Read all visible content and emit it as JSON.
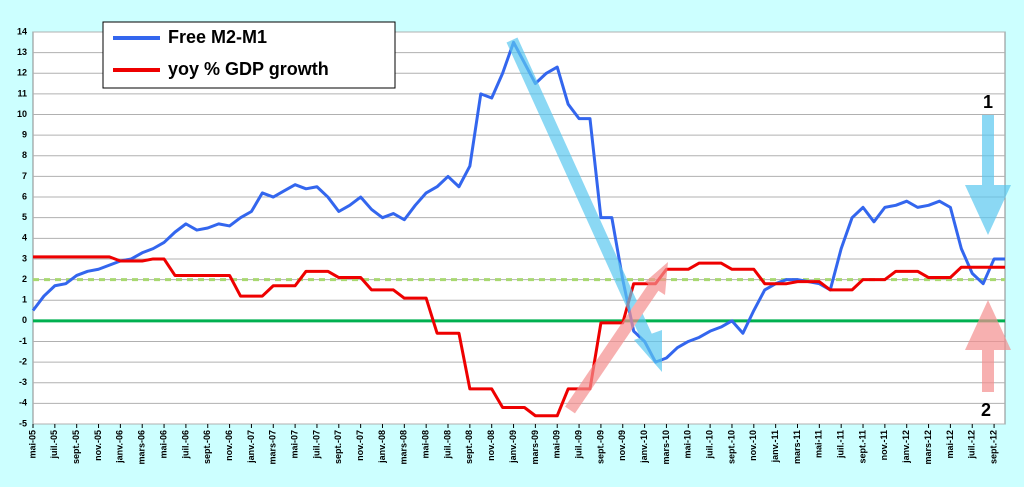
{
  "chart_data": {
    "type": "line",
    "categories": [
      "mai-05",
      null,
      "juil.-05",
      null,
      "sept.-05",
      null,
      "nov.-05",
      null,
      "janv.-06",
      null,
      "mars-06",
      null,
      "mai-06",
      null,
      "juil.-06",
      null,
      "sept.-06",
      null,
      "nov.-06",
      null,
      "janv.-07",
      null,
      "mars-07",
      null,
      "mai-07",
      null,
      "juil.-07",
      null,
      "sept.-07",
      null,
      "nov.-07",
      null,
      "janv.-08",
      null,
      "mars-08",
      null,
      "mai-08",
      null,
      "juil.-08",
      null,
      "sept.-08",
      null,
      "nov.-08",
      null,
      "janv.-09",
      null,
      "mars-09",
      null,
      "mai-09",
      null,
      "juil.-09",
      null,
      "sept.-09",
      null,
      "nov.-09",
      null,
      "janv.-10",
      null,
      "mars-10",
      null,
      "mai-10",
      null,
      "juil.-10",
      null,
      "sept.-10",
      null,
      "nov.-10",
      null,
      "janv.-11",
      null,
      "mars-11",
      null,
      "mai-11",
      null,
      "juil.-11",
      null,
      "sept.-11",
      null,
      "nov.-11",
      null,
      "janv.-12",
      null,
      "mars-12",
      null,
      "mai-12",
      null,
      "juil.-12",
      null,
      "sept.-12",
      null
    ],
    "series": [
      {
        "name": "Free M2-M1",
        "color": "#3366ee",
        "values": [
          0.5,
          1.2,
          1.7,
          1.8,
          2.2,
          2.4,
          2.5,
          2.7,
          2.9,
          3.0,
          3.3,
          3.5,
          3.8,
          4.3,
          4.7,
          4.4,
          4.5,
          4.7,
          4.6,
          5.0,
          5.3,
          6.2,
          6.0,
          6.3,
          6.6,
          6.4,
          6.5,
          6.0,
          5.3,
          5.6,
          6.0,
          5.4,
          5.0,
          5.2,
          4.9,
          5.6,
          6.2,
          6.5,
          7.0,
          6.5,
          7.5,
          11.0,
          10.8,
          12.0,
          13.5,
          12.5,
          11.5,
          12.0,
          12.3,
          10.5,
          9.8,
          9.8,
          5.0,
          5.0,
          2.0,
          -0.5,
          -1.0,
          -2.0,
          -1.8,
          -1.3,
          -1.0,
          -0.8,
          -0.5,
          -0.3,
          0.0,
          -0.6,
          0.5,
          1.5,
          1.8,
          2.0,
          2.0,
          1.9,
          1.8,
          1.5,
          3.5,
          5.0,
          5.5,
          4.8,
          5.5,
          5.6,
          5.8,
          5.5,
          5.6,
          5.8,
          5.5,
          3.5,
          2.3,
          1.8,
          3.0,
          3.0
        ]
      },
      {
        "name": "yoy % GDP growth",
        "color": "#ee0000",
        "values": [
          3.1,
          3.1,
          3.1,
          3.1,
          3.1,
          3.1,
          3.1,
          3.1,
          2.9,
          2.9,
          2.9,
          3.0,
          3.0,
          2.2,
          2.2,
          2.2,
          2.2,
          2.2,
          2.2,
          1.2,
          1.2,
          1.2,
          1.7,
          1.7,
          1.7,
          2.4,
          2.4,
          2.4,
          2.1,
          2.1,
          2.1,
          1.5,
          1.5,
          1.5,
          1.1,
          1.1,
          1.1,
          -0.6,
          -0.6,
          -0.6,
          -3.3,
          -3.3,
          -3.3,
          -4.2,
          -4.2,
          -4.2,
          -4.6,
          -4.6,
          -4.6,
          -3.3,
          -3.3,
          -3.3,
          -0.1,
          -0.1,
          -0.1,
          1.8,
          1.8,
          1.8,
          2.5,
          2.5,
          2.5,
          2.8,
          2.8,
          2.8,
          2.5,
          2.5,
          2.5,
          1.8,
          1.8,
          1.8,
          1.9,
          1.9,
          1.9,
          1.5,
          1.5,
          1.5,
          2.0,
          2.0,
          2.0,
          2.4,
          2.4,
          2.4,
          2.1,
          2.1,
          2.1,
          2.6,
          2.6,
          2.6,
          2.6,
          2.6
        ]
      }
    ],
    "ylim": [
      -5,
      14
    ],
    "yticks": [
      -5,
      -4,
      -3,
      -2,
      -1,
      0,
      1,
      2,
      3,
      4,
      5,
      6,
      7,
      8,
      9,
      10,
      11,
      12,
      13,
      14
    ],
    "grid": true,
    "hlines": [
      {
        "value": 0,
        "color": "#00b050",
        "style": "solid"
      },
      {
        "value": 2,
        "color": "#a8d870",
        "style": "dashed"
      }
    ],
    "annotations": [
      "1",
      "2"
    ]
  }
}
